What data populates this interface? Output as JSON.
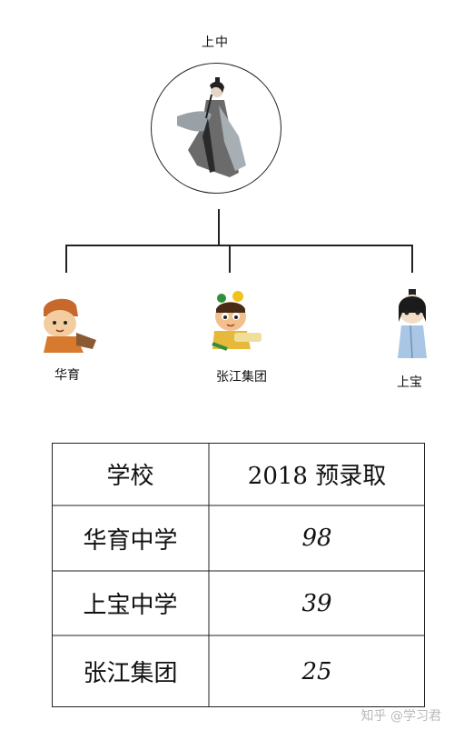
{
  "tree": {
    "root": {
      "label": "上中",
      "icon": "scholar-figure-icon"
    },
    "children": [
      {
        "label": "华育",
        "icon": "monk-boy-icon"
      },
      {
        "label": "张江集团",
        "icon": "cartoon-boy-icon"
      },
      {
        "label": "上宝",
        "icon": "chibi-scholar-icon"
      }
    ]
  },
  "table": {
    "header": {
      "school": "学校",
      "admission": "2018 预录取"
    },
    "rows": [
      {
        "school": "华育中学",
        "count": "98"
      },
      {
        "school": "上宝中学",
        "count": "39"
      },
      {
        "school": "张江集团",
        "count": "25"
      }
    ]
  },
  "watermark": "知乎 @学习君",
  "colors": {
    "line": "#222222",
    "watermark": "#b9b9b9"
  }
}
